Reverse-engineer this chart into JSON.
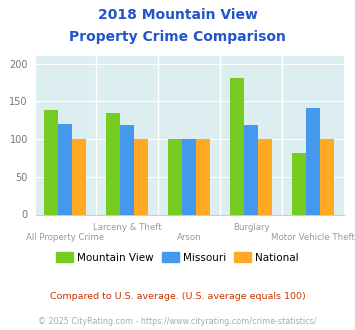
{
  "title_line1": "2018 Mountain View",
  "title_line2": "Property Crime Comparison",
  "categories": [
    "All Property Crime",
    "Larceny & Theft",
    "Arson",
    "Burglary",
    "Motor Vehicle Theft"
  ],
  "series": {
    "Mountain View": [
      138,
      135,
      100,
      181,
      82
    ],
    "Missouri": [
      120,
      119,
      100,
      119,
      141
    ],
    "National": [
      100,
      100,
      100,
      100,
      100
    ]
  },
  "colors": {
    "Mountain View": "#77cc22",
    "Missouri": "#4499ee",
    "National": "#ffaa22"
  },
  "ylim": [
    0,
    210
  ],
  "yticks": [
    0,
    50,
    100,
    150,
    200
  ],
  "bar_width": 0.18,
  "plot_bg": "#ddeef0",
  "title_color": "#2255cc",
  "xlabel_color": "#999999",
  "ylabel_color": "#777777",
  "grid_color": "#ffffff",
  "spine_color": "#cccccc",
  "footnote1": "Compared to U.S. average. (U.S. average equals 100)",
  "footnote2": "© 2025 CityRating.com - https://www.cityrating.com/crime-statistics/",
  "footnote1_color": "#cc3300",
  "footnote2_color": "#aaaaaa",
  "divider_color": "#ffffff"
}
